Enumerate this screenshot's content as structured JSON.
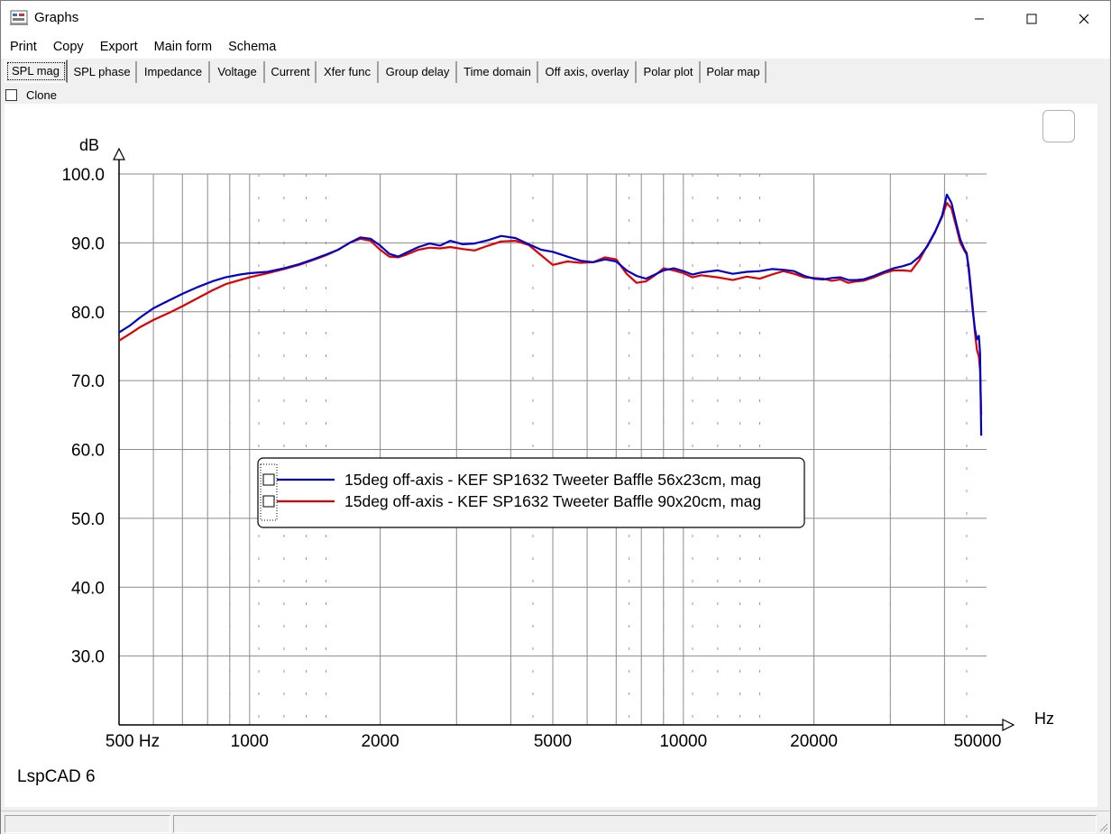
{
  "window": {
    "title": "Graphs",
    "controls": {
      "minimize": "—",
      "maximize": "☐",
      "close": "✕"
    }
  },
  "menu": [
    {
      "label": "Print"
    },
    {
      "label": "Copy"
    },
    {
      "label": "Export"
    },
    {
      "label": "Main form"
    },
    {
      "label": "Schema"
    }
  ],
  "tabs": [
    {
      "label": "SPL mag",
      "active": true
    },
    {
      "label": "SPL phase",
      "active": false
    },
    {
      "label": "Impedance",
      "active": false
    },
    {
      "label": "Voltage",
      "active": false
    },
    {
      "label": "Current",
      "active": false
    },
    {
      "label": "Xfer func",
      "active": false
    },
    {
      "label": "Group delay",
      "active": false
    },
    {
      "label": "Time domain",
      "active": false
    },
    {
      "label": "Off axis, overlay",
      "active": false
    },
    {
      "label": "Polar plot",
      "active": false
    },
    {
      "label": "Polar map",
      "active": false
    }
  ],
  "clone": {
    "label": "Clone",
    "checked": false
  },
  "watermark": "LspCAD 6",
  "chart_data": {
    "type": "line",
    "xlabel": "Hz",
    "ylabel": "dB",
    "x_scale": "log",
    "xlim": [
      500,
      50000
    ],
    "ylim": [
      20,
      100
    ],
    "grid": true,
    "legend_position": "center-left",
    "x_ticks": [
      {
        "value": 500,
        "label": "500 Hz"
      },
      {
        "value": 1000,
        "label": "1000"
      },
      {
        "value": 2000,
        "label": "2000"
      },
      {
        "value": 5000,
        "label": "5000"
      },
      {
        "value": 10000,
        "label": "10000"
      },
      {
        "value": 20000,
        "label": "20000"
      },
      {
        "value": 50000,
        "label": "50000"
      }
    ],
    "y_ticks": [
      {
        "value": 100,
        "label": "100.0"
      },
      {
        "value": 90,
        "label": "90.0"
      },
      {
        "value": 80,
        "label": "80.0"
      },
      {
        "value": 70,
        "label": "70.0"
      },
      {
        "value": 60,
        "label": "60.0"
      },
      {
        "value": 50,
        "label": "50.0"
      },
      {
        "value": 40,
        "label": "40.0"
      },
      {
        "value": 30,
        "label": "30.0"
      }
    ],
    "series": [
      {
        "name": "15deg off-axis - KEF SP1632 Tweeter Baffle 56x23cm, mag",
        "color": "#0000cc",
        "points": [
          [
            500,
            77.0
          ],
          [
            530,
            78.0
          ],
          [
            560,
            79.2
          ],
          [
            600,
            80.5
          ],
          [
            650,
            81.6
          ],
          [
            700,
            82.6
          ],
          [
            760,
            83.6
          ],
          [
            820,
            84.4
          ],
          [
            880,
            85.0
          ],
          [
            950,
            85.4
          ],
          [
            1000,
            85.6
          ],
          [
            1100,
            85.8
          ],
          [
            1200,
            86.3
          ],
          [
            1300,
            86.9
          ],
          [
            1400,
            87.6
          ],
          [
            1500,
            88.3
          ],
          [
            1600,
            89.0
          ],
          [
            1700,
            90.0
          ],
          [
            1800,
            90.8
          ],
          [
            1900,
            90.6
          ],
          [
            2000,
            89.6
          ],
          [
            2100,
            88.4
          ],
          [
            2200,
            88.0
          ],
          [
            2300,
            88.6
          ],
          [
            2450,
            89.4
          ],
          [
            2600,
            89.9
          ],
          [
            2750,
            89.6
          ],
          [
            2900,
            90.3
          ],
          [
            3100,
            89.8
          ],
          [
            3300,
            89.9
          ],
          [
            3550,
            90.4
          ],
          [
            3800,
            91.0
          ],
          [
            4100,
            90.7
          ],
          [
            4400,
            89.8
          ],
          [
            4700,
            89.0
          ],
          [
            5000,
            88.7
          ],
          [
            5400,
            88.0
          ],
          [
            5800,
            87.4
          ],
          [
            6200,
            87.2
          ],
          [
            6600,
            87.6
          ],
          [
            7000,
            87.3
          ],
          [
            7400,
            86.0
          ],
          [
            7800,
            85.2
          ],
          [
            8200,
            84.8
          ],
          [
            8600,
            85.4
          ],
          [
            9000,
            86.0
          ],
          [
            9500,
            86.3
          ],
          [
            10000,
            85.9
          ],
          [
            10500,
            85.4
          ],
          [
            11000,
            85.7
          ],
          [
            12000,
            86.0
          ],
          [
            13000,
            85.5
          ],
          [
            14000,
            85.8
          ],
          [
            15000,
            85.9
          ],
          [
            16000,
            86.2
          ],
          [
            17000,
            86.1
          ],
          [
            18000,
            85.9
          ],
          [
            19000,
            85.2
          ],
          [
            20000,
            84.8
          ],
          [
            21000,
            84.7
          ],
          [
            22000,
            84.9
          ],
          [
            23000,
            85.0
          ],
          [
            24000,
            84.6
          ],
          [
            25000,
            84.6
          ],
          [
            26000,
            84.7
          ],
          [
            27500,
            85.2
          ],
          [
            29000,
            85.8
          ],
          [
            30500,
            86.3
          ],
          [
            32000,
            86.6
          ],
          [
            33500,
            87.0
          ],
          [
            35000,
            88.0
          ],
          [
            36500,
            89.5
          ],
          [
            38000,
            91.5
          ],
          [
            39500,
            94.0
          ],
          [
            40500,
            97.0
          ],
          [
            41500,
            95.8
          ],
          [
            42500,
            93.0
          ],
          [
            43500,
            90.5
          ],
          [
            44500,
            89.0
          ],
          [
            45000,
            88.5
          ],
          [
            45500,
            86.0
          ],
          [
            46000,
            83.0
          ],
          [
            46500,
            80.0
          ],
          [
            47000,
            77.5
          ],
          [
            47500,
            76.0
          ],
          [
            48000,
            76.5
          ],
          [
            48300,
            74.0
          ],
          [
            48600,
            62.0
          ]
        ]
      },
      {
        "name": "15deg off-axis - KEF SP1632 Tweeter Baffle 90x20cm, mag",
        "color": "#e00000",
        "points": [
          [
            500,
            75.8
          ],
          [
            530,
            76.8
          ],
          [
            560,
            77.8
          ],
          [
            600,
            78.8
          ],
          [
            650,
            79.8
          ],
          [
            700,
            80.8
          ],
          [
            760,
            82.0
          ],
          [
            820,
            83.1
          ],
          [
            880,
            84.0
          ],
          [
            950,
            84.6
          ],
          [
            1000,
            85.0
          ],
          [
            1100,
            85.6
          ],
          [
            1200,
            86.2
          ],
          [
            1300,
            86.8
          ],
          [
            1400,
            87.5
          ],
          [
            1500,
            88.2
          ],
          [
            1600,
            89.0
          ],
          [
            1700,
            90.0
          ],
          [
            1800,
            90.6
          ],
          [
            1900,
            90.3
          ],
          [
            2000,
            89.0
          ],
          [
            2100,
            88.0
          ],
          [
            2200,
            87.9
          ],
          [
            2300,
            88.3
          ],
          [
            2450,
            89.0
          ],
          [
            2600,
            89.3
          ],
          [
            2750,
            89.2
          ],
          [
            2900,
            89.4
          ],
          [
            3100,
            89.1
          ],
          [
            3300,
            88.9
          ],
          [
            3550,
            89.6
          ],
          [
            3800,
            90.2
          ],
          [
            4100,
            90.3
          ],
          [
            4400,
            89.7
          ],
          [
            4700,
            88.2
          ],
          [
            5000,
            86.8
          ],
          [
            5400,
            87.3
          ],
          [
            5800,
            87.1
          ],
          [
            6200,
            87.2
          ],
          [
            6600,
            87.9
          ],
          [
            7000,
            87.6
          ],
          [
            7400,
            85.5
          ],
          [
            7800,
            84.2
          ],
          [
            8200,
            84.4
          ],
          [
            8600,
            85.3
          ],
          [
            9000,
            86.3
          ],
          [
            9500,
            86.0
          ],
          [
            10000,
            85.6
          ],
          [
            10500,
            85.0
          ],
          [
            11000,
            85.3
          ],
          [
            12000,
            85.0
          ],
          [
            13000,
            84.6
          ],
          [
            14000,
            85.1
          ],
          [
            15000,
            84.8
          ],
          [
            16000,
            85.4
          ],
          [
            17000,
            85.9
          ],
          [
            18000,
            85.5
          ],
          [
            19000,
            85.0
          ],
          [
            20000,
            84.9
          ],
          [
            21000,
            84.8
          ],
          [
            22000,
            84.5
          ],
          [
            23000,
            84.7
          ],
          [
            24000,
            84.2
          ],
          [
            25000,
            84.4
          ],
          [
            26000,
            84.5
          ],
          [
            27500,
            85.0
          ],
          [
            29000,
            85.6
          ],
          [
            30500,
            86.0
          ],
          [
            32000,
            86.0
          ],
          [
            33500,
            85.9
          ],
          [
            35000,
            87.5
          ],
          [
            36500,
            89.6
          ],
          [
            38000,
            91.6
          ],
          [
            39500,
            93.8
          ],
          [
            40500,
            95.8
          ],
          [
            41500,
            95.0
          ],
          [
            42500,
            92.5
          ],
          [
            43500,
            90.0
          ],
          [
            44500,
            88.8
          ],
          [
            45000,
            88.3
          ],
          [
            45500,
            86.5
          ],
          [
            46000,
            83.5
          ],
          [
            46500,
            80.5
          ],
          [
            47000,
            77.0
          ],
          [
            47500,
            74.5
          ],
          [
            48000,
            73.5
          ],
          [
            48300,
            71.5
          ],
          [
            48600,
            65.0
          ]
        ]
      }
    ]
  }
}
